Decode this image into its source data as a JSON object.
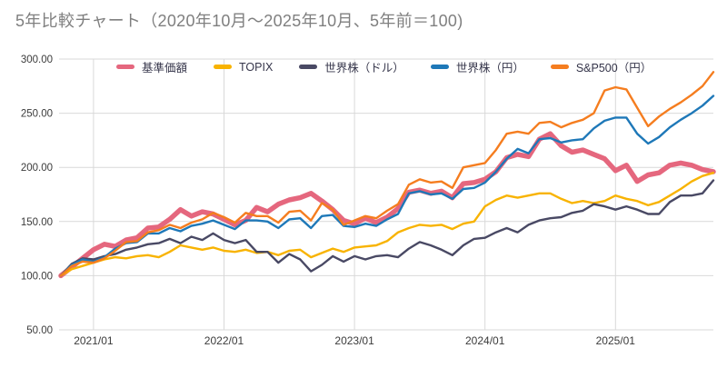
{
  "title": {
    "text": "5年比較チャート（2020年10月～2025年10月、5年前＝100)",
    "color": "#7f7f7f"
  },
  "chart_data": {
    "type": "line",
    "title": "5年比較チャート（2020年10月～2025年10月、5年前＝100)",
    "index_base_note": "5年前＝100",
    "grid": true,
    "legend_position": "top",
    "colors": {
      "grid": "#d9d9d9",
      "axis_text": "#3b3b3b"
    },
    "y_axis": {
      "min": 50,
      "max": 300,
      "tick_values": [
        300,
        250,
        200,
        150,
        100,
        50
      ],
      "tick_labels": [
        "300.00",
        "250.00",
        "200.00",
        "150.00",
        "100.00",
        "50.00"
      ]
    },
    "x_axis": {
      "tick_labels": [
        "2021/01",
        "2022/01",
        "2023/01",
        "2024/01",
        "2025/01"
      ],
      "tick_month_indexes": [
        3,
        15,
        27,
        39,
        51
      ]
    },
    "x": [
      "2020/10",
      "2020/11",
      "2020/12",
      "2021/01",
      "2021/02",
      "2021/03",
      "2021/04",
      "2021/05",
      "2021/06",
      "2021/07",
      "2021/08",
      "2021/09",
      "2021/10",
      "2021/11",
      "2021/12",
      "2022/01",
      "2022/02",
      "2022/03",
      "2022/04",
      "2022/05",
      "2022/06",
      "2022/07",
      "2022/08",
      "2022/09",
      "2022/10",
      "2022/11",
      "2022/12",
      "2023/01",
      "2023/02",
      "2023/03",
      "2023/04",
      "2023/05",
      "2023/06",
      "2023/07",
      "2023/08",
      "2023/09",
      "2023/10",
      "2023/11",
      "2023/12",
      "2024/01",
      "2024/02",
      "2024/03",
      "2024/04",
      "2024/05",
      "2024/06",
      "2024/07",
      "2024/08",
      "2024/09",
      "2024/10",
      "2024/11",
      "2024/12",
      "2025/01",
      "2025/02",
      "2025/03",
      "2025/04",
      "2025/05",
      "2025/06",
      "2025/07",
      "2025/08",
      "2025/09",
      "2025/10"
    ],
    "series": [
      {
        "name": "基準価額",
        "color": "#E5677E",
        "width": 5.5,
        "values": [
          100,
          108,
          116,
          124,
          129,
          127,
          133,
          135,
          144,
          145,
          152,
          161,
          155,
          159,
          157,
          152,
          147,
          151,
          163,
          159,
          166,
          170,
          172,
          176,
          169,
          161,
          151,
          148,
          153,
          149,
          154,
          162,
          177,
          179,
          176,
          178,
          172,
          185,
          186,
          189,
          196,
          209,
          212,
          210,
          226,
          231,
          220,
          214,
          216,
          212,
          208,
          197,
          202,
          187,
          193,
          195,
          202,
          204,
          202,
          198,
          196
        ]
      },
      {
        "name": "TOPIX",
        "color": "#F8B301",
        "width": 2.4,
        "values": [
          100,
          106,
          109,
          112,
          115,
          117,
          116,
          118,
          119,
          117,
          122,
          128,
          126,
          124,
          126,
          123,
          122,
          124,
          121,
          122,
          119,
          123,
          124,
          117,
          121,
          125,
          122,
          126,
          127,
          128,
          132,
          140,
          144,
          147,
          146,
          147,
          143,
          148,
          150,
          164,
          170,
          174,
          172,
          174,
          176,
          176,
          171,
          167,
          169,
          167,
          169,
          174,
          171,
          169,
          165,
          168,
          174,
          180,
          187,
          192,
          195
        ]
      },
      {
        "name": "世界株（ドル）",
        "color": "#494964",
        "width": 2.4,
        "values": [
          100,
          111,
          116,
          115,
          118,
          120,
          124,
          126,
          129,
          130,
          134,
          130,
          136,
          133,
          139,
          133,
          130,
          133,
          122,
          122,
          112,
          120,
          115,
          104,
          110,
          118,
          113,
          118,
          115,
          118,
          119,
          117,
          125,
          131,
          128,
          124,
          119,
          128,
          134,
          135,
          140,
          144,
          140,
          147,
          151,
          153,
          154,
          158,
          160,
          166,
          164,
          161,
          164,
          161,
          157,
          157,
          168,
          174,
          174,
          176,
          188
        ]
      },
      {
        "name": "世界株（円）",
        "color": "#1E78B8",
        "width": 2.4,
        "values": [
          100,
          110,
          115,
          113,
          117,
          125,
          130,
          131,
          139,
          139,
          144,
          141,
          146,
          148,
          151,
          147,
          143,
          151,
          151,
          150,
          144,
          152,
          153,
          144,
          155,
          156,
          146,
          145,
          148,
          146,
          152,
          157,
          176,
          178,
          175,
          176,
          171,
          180,
          181,
          186,
          196,
          208,
          217,
          213,
          226,
          227,
          223,
          225,
          226,
          236,
          243,
          246,
          246,
          231,
          222,
          228,
          237,
          244,
          250,
          257,
          266
        ]
      },
      {
        "name": "S&P500（円）",
        "color": "#F57D1F",
        "width": 2.4,
        "values": [
          100,
          109,
          113,
          112,
          116,
          123,
          131,
          132,
          140,
          142,
          147,
          144,
          149,
          152,
          158,
          154,
          149,
          158,
          155,
          155,
          149,
          159,
          160,
          151,
          167,
          161,
          147,
          151,
          155,
          153,
          160,
          166,
          184,
          189,
          186,
          187,
          181,
          200,
          202,
          204,
          216,
          231,
          233,
          231,
          241,
          242,
          237,
          241,
          244,
          250,
          271,
          274,
          272,
          255,
          238,
          247,
          254,
          260,
          267,
          275,
          288
        ]
      }
    ]
  }
}
